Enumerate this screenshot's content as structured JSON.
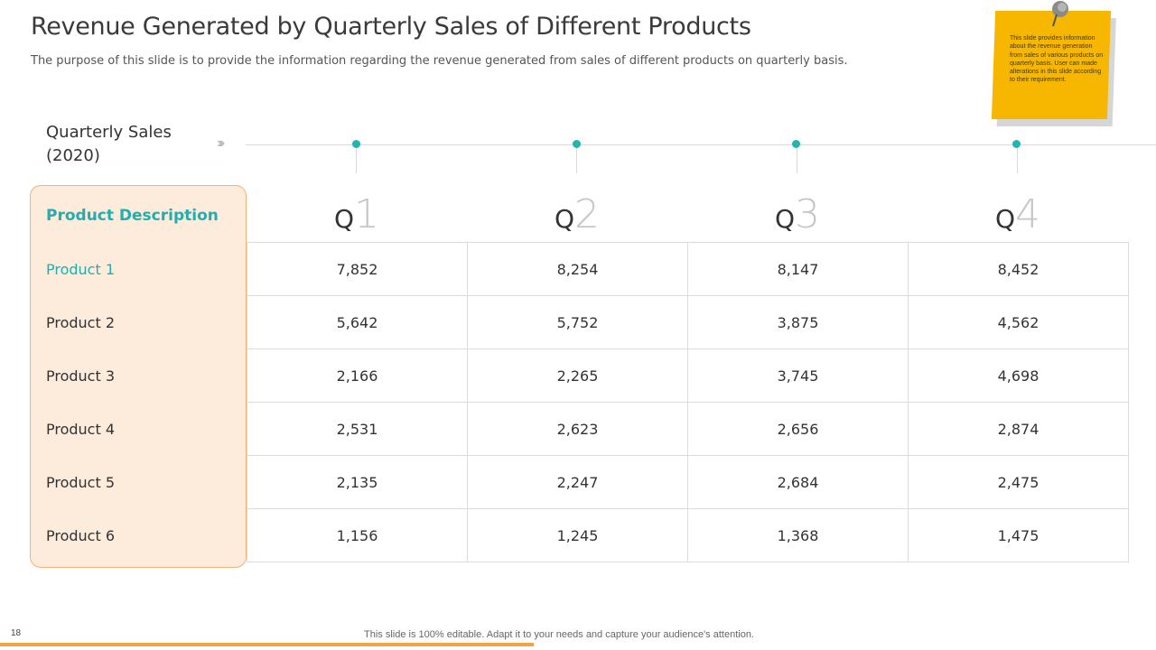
{
  "title": "Revenue Generated by Quarterly Sales of Different Products",
  "subtitle": "The purpose of this slide is to provide the information regarding the revenue generated from sales of different products on quarterly basis.",
  "note": "This slide provides information about the revenue generation from sales of various products on quarterly basis. User can made alterations in this slide according to their requirement.",
  "timeline": {
    "label_line1": "Quarterly Sales",
    "label_line2": "(2020)",
    "chevrons": "››››"
  },
  "quarters": [
    {
      "letter": "Q",
      "number": "1"
    },
    {
      "letter": "Q",
      "number": "2"
    },
    {
      "letter": "Q",
      "number": "3"
    },
    {
      "letter": "Q",
      "number": "4"
    }
  ],
  "table": {
    "header": "Product Description",
    "rows": [
      {
        "product": "Product 1",
        "values": [
          "7,852",
          "8,254",
          "8,147",
          "8,452"
        ]
      },
      {
        "product": "Product 2",
        "values": [
          "5,642",
          "5,752",
          "3,875",
          "4,562"
        ]
      },
      {
        "product": "Product 3",
        "values": [
          "2,166",
          "2,265",
          "3,745",
          "4,698"
        ]
      },
      {
        "product": "Product 4",
        "values": [
          "2,531",
          "2,623",
          "2,656",
          "2,874"
        ]
      },
      {
        "product": "Product 5",
        "values": [
          "2,135",
          "2,247",
          "2,684",
          "2,475"
        ]
      },
      {
        "product": "Product 6",
        "values": [
          "1,156",
          "1,245",
          "1,368",
          "1,475"
        ]
      }
    ]
  },
  "page_number": "18",
  "footer": "This slide is 100% editable. Adapt it to your needs and capture your audience's attention.",
  "colors": {
    "accent_teal": "#21aeb0",
    "note_yellow": "#f7b600",
    "bar_orange": "#f0a44a",
    "desc_bg": "#fdebdb"
  }
}
